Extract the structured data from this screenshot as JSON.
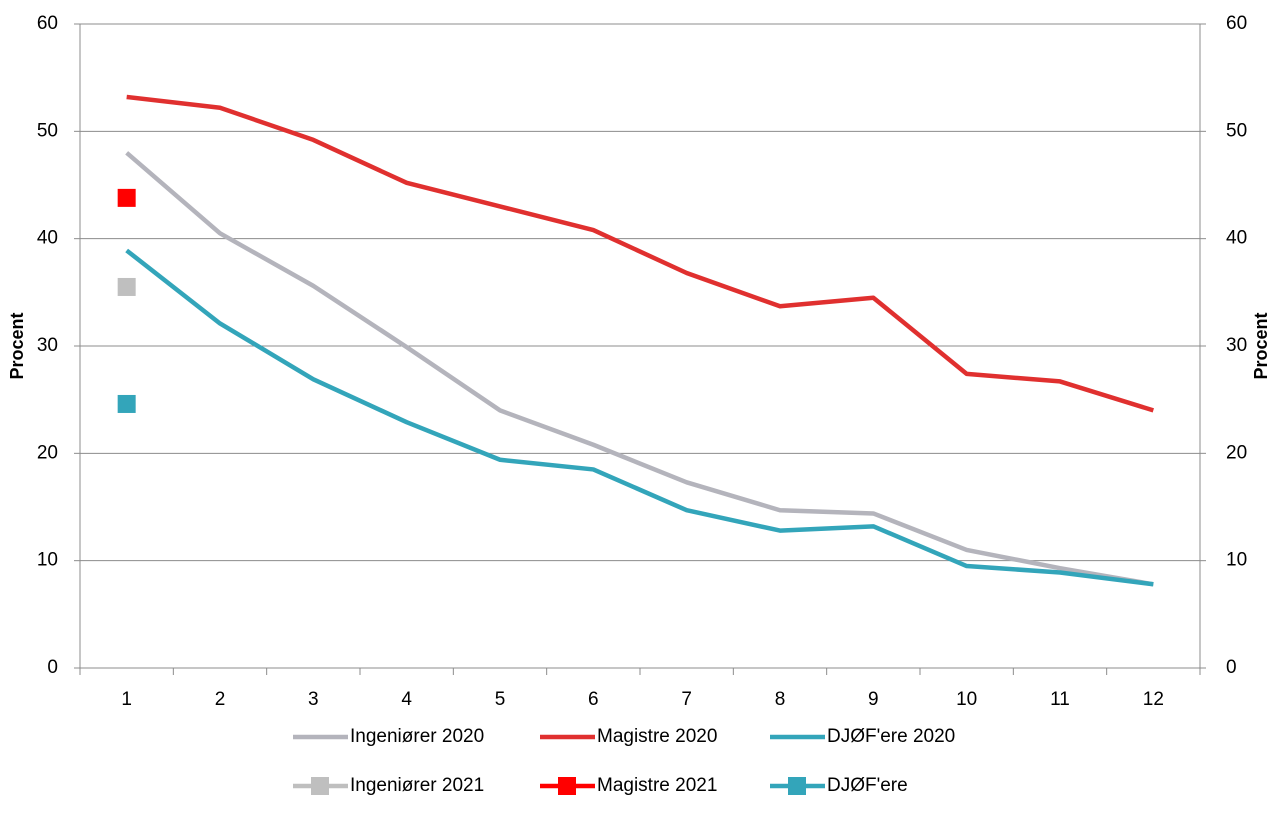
{
  "chart_data": {
    "type": "line",
    "y_label": "Procent",
    "y2_label": "Procent",
    "categories": [
      "1",
      "2",
      "3",
      "4",
      "5",
      "6",
      "7",
      "8",
      "9",
      "10",
      "11",
      "12"
    ],
    "series": [
      {
        "name": "Ingeniører 2020",
        "color": "#b4b4bc",
        "values": [
          48,
          40.5,
          35.6,
          29.9,
          24,
          20.8,
          17.3,
          14.7,
          14.4,
          11,
          9.3,
          7.8
        ]
      },
      {
        "name": "Magistre 2020",
        "color": "#e0302f",
        "values": [
          53.2,
          52.2,
          49.2,
          45.2,
          43,
          40.8,
          36.8,
          33.7,
          34.5,
          27.4,
          26.7,
          24
        ]
      },
      {
        "name": "DJØF'ere 2020",
        "color": "#33a5ba",
        "values": [
          38.9,
          32.1,
          26.9,
          22.9,
          19.4,
          18.5,
          14.7,
          12.8,
          13.2,
          9.5,
          8.9,
          7.8
        ]
      },
      {
        "name": "Ingeniører 2021",
        "color": "#bfbfbf",
        "marker": "square",
        "values": [
          35.5,
          null,
          null,
          null,
          null,
          null,
          null,
          null,
          null,
          null,
          null,
          null
        ]
      },
      {
        "name": "Magistre 2021",
        "color": "#ff0000",
        "marker": "square",
        "values": [
          43.8,
          null,
          null,
          null,
          null,
          null,
          null,
          null,
          null,
          null,
          null,
          null
        ]
      },
      {
        "name": "DJØF'ere",
        "color": "#33a5ba",
        "marker": "square",
        "values": [
          24.6,
          null,
          null,
          null,
          null,
          null,
          null,
          null,
          null,
          null,
          null,
          null
        ]
      }
    ],
    "ylim": [
      0,
      60
    ],
    "yticks": [
      0,
      10,
      20,
      30,
      40,
      50,
      60
    ],
    "y2lim": [
      0,
      60
    ],
    "y2ticks": [
      0,
      10,
      20,
      30,
      40,
      50,
      60
    ],
    "grid": true,
    "legend": "bottom"
  }
}
